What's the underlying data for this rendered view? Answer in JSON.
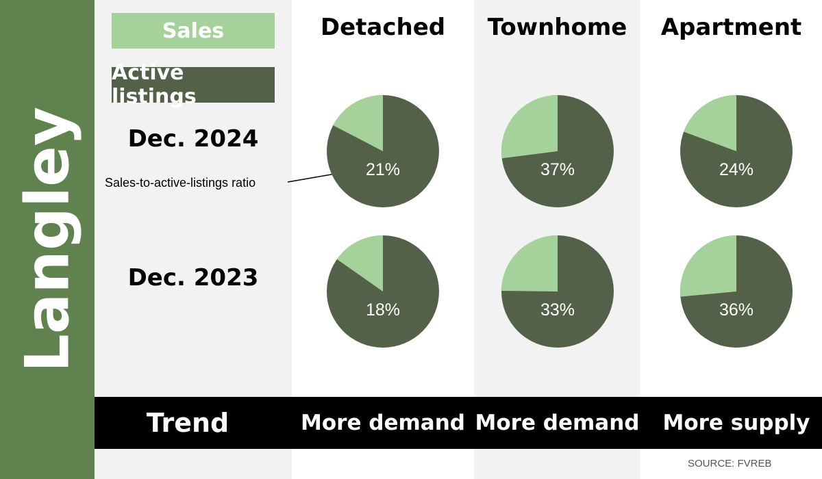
{
  "region": "Langley",
  "legend": {
    "sales": "Sales",
    "active": "Active listings"
  },
  "colors": {
    "sales": "#a4d29a",
    "active": "#526148",
    "sidebar": "#5f824f",
    "pct_text": "#ffffff"
  },
  "annotation": "Sales-to-active-listings ratio",
  "source": "SOURCE: FVREB",
  "chart_data": {
    "type": "pie",
    "columns": [
      "Detached",
      "Townhome",
      "Apartment"
    ],
    "rows": [
      "Dec. 2024",
      "Dec. 2023"
    ],
    "ratios": [
      [
        21,
        37,
        24
      ],
      [
        18,
        33,
        36
      ]
    ],
    "ratio_labels": [
      [
        "21%",
        "37%",
        "24%"
      ],
      [
        "18%",
        "33%",
        "36%"
      ]
    ],
    "trend_label": "Trend",
    "trends": [
      "More demand",
      "More demand",
      "More supply"
    ]
  }
}
